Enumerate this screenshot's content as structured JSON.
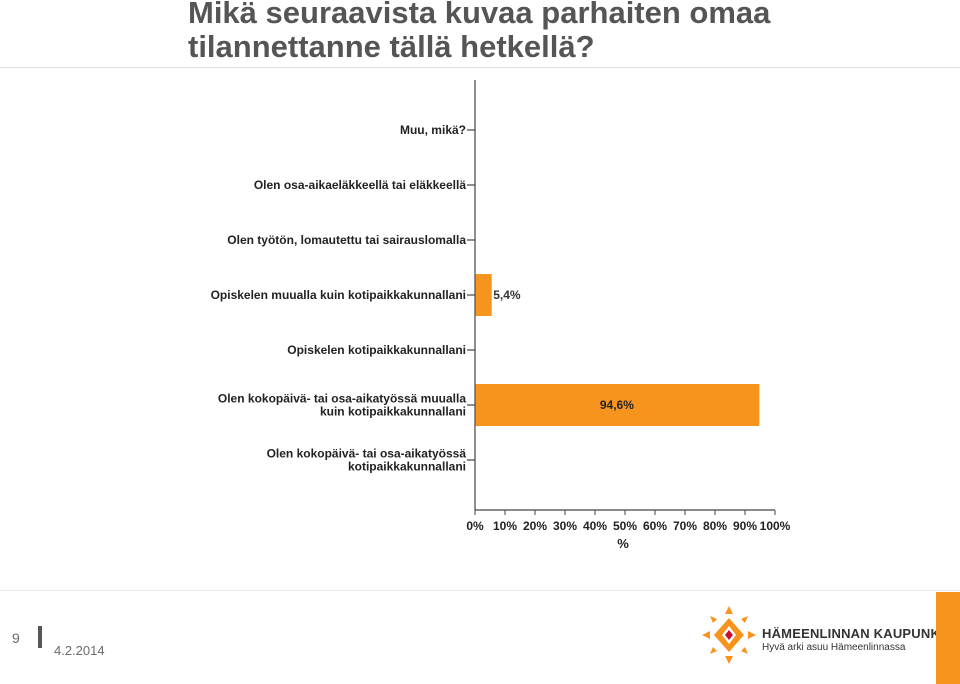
{
  "slide": {
    "title": "Mikä seuraavista kuvaa parhaiten omaa tilannettanne tällä hetkellä?",
    "page_number": "9",
    "date": "4.2.2014",
    "logo_name": "HÄMEENLINNAN KAUPUNKI",
    "logo_tagline": "Hyvä arki asuu Hämeenlinnassa"
  },
  "colors": {
    "bar": "#f7941d",
    "title": "#555555",
    "brand_orange": "#f7941d"
  },
  "chart_data": {
    "type": "bar",
    "orientation": "horizontal",
    "xlabel": "%",
    "xlim": [
      0,
      100
    ],
    "xticks": [
      "0%",
      "10%",
      "20%",
      "30%",
      "40%",
      "50%",
      "60%",
      "70%",
      "80%",
      "90%",
      "100%"
    ],
    "categories": [
      [
        "Muu, mikä?"
      ],
      [
        "Olen osa-aikaeläkkeellä tai eläkkeellä"
      ],
      [
        "Olen työtön, lomautettu tai sairauslomalla"
      ],
      [
        "Opiskelen muualla kuin kotipaikkakunnallani"
      ],
      [
        "Opiskelen kotipaikkakunnallani"
      ],
      [
        "Olen kokopäivä- tai osa-aikatyössä muualla",
        "kuin kotipaikkakunnallani"
      ],
      [
        "Olen kokopäivä- tai osa-aikatyössä",
        "kotipaikkakunnallani"
      ]
    ],
    "values": [
      null,
      null,
      null,
      5.4,
      null,
      94.6,
      null
    ],
    "data_labels": [
      "",
      "",
      "",
      "5,4%",
      "",
      "94,6%",
      ""
    ],
    "grid": false,
    "legend": "none"
  }
}
